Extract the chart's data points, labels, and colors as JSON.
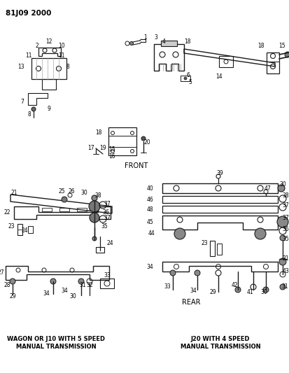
{
  "title": "81J09 2000",
  "bg_color": "#ffffff",
  "line_color": "#1a1a1a",
  "text_color": "#000000",
  "fig_width": 4.13,
  "fig_height": 5.33,
  "dpi": 100,
  "label_front": "FRONT",
  "label_rear": "REAR",
  "label_wagon": "WAGON OR J10 WITH 5 SPEED\nMANUAL TRANSMISSION",
  "label_j20": "J20 WITH 4 SPEED\nMANUAL TRANSMISSION"
}
